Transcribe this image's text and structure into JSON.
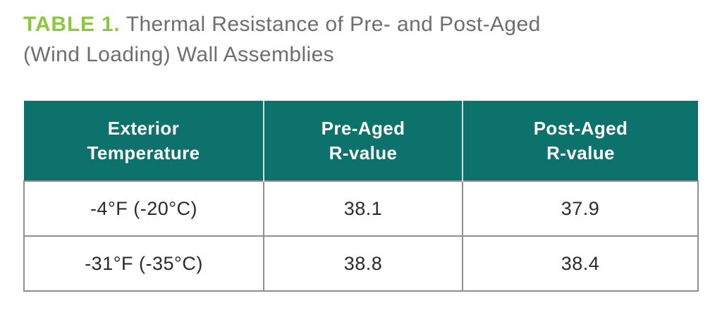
{
  "caption": {
    "label": "TABLE 1.",
    "line1": "Thermal Resistance of Pre- and Post-Aged",
    "line2": "(Wind Loading) Wall Assemblies"
  },
  "table": {
    "headers": [
      {
        "line1": "Exterior",
        "line2": "Temperature"
      },
      {
        "line1": "Pre-Aged",
        "line2": "R-value"
      },
      {
        "line1": "Post-Aged",
        "line2": "R-value"
      }
    ],
    "rows": [
      {
        "temperature": "-4°F (-20°C)",
        "pre_aged": "38.1",
        "post_aged": "37.9"
      },
      {
        "temperature": "-31°F (-35°C)",
        "pre_aged": "38.8",
        "post_aged": "38.4"
      }
    ]
  },
  "colors": {
    "accent_green": "#8dc63f",
    "header_teal": "#0d716c",
    "caption_gray": "#6d6e71",
    "body_text": "#2b2b2b",
    "border_gray": "#8f8f8f",
    "header_divider": "#cfe0df"
  }
}
